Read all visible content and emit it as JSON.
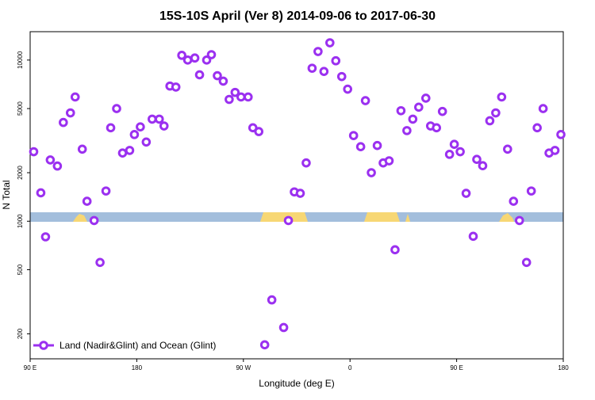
{
  "chart_data": {
    "type": "scatter",
    "title": "15S-10S April (Ver 8)   2014-09-06 to 2017-06-30",
    "x_label": "Longitude (deg E)",
    "y_label": "N Total",
    "log_y": true,
    "xlim": [
      90,
      540
    ],
    "xticks": [
      {
        "value": 90,
        "label": "90 E"
      },
      180,
      {
        "value": 270,
        "label": "90 W"
      },
      {
        "value": 360,
        "label": "0"
      },
      {
        "value": 450,
        "label": "90 E"
      },
      {
        "value": 540,
        "label": "180"
      }
    ],
    "ylim": [
      140,
      15000
    ],
    "yticks": [
      200,
      500,
      1000,
      2000,
      5000,
      10000
    ],
    "legend": "bottom-left",
    "series": [
      {
        "name": "Land (Nadir&Glint) and Ocean (Glint)",
        "color": "#9b30f0",
        "x": [
          93,
          99,
          103,
          107,
          113,
          118,
          124,
          128,
          134,
          138,
          144,
          149,
          154,
          158,
          163,
          168,
          174,
          178,
          183,
          188,
          193,
          199,
          203,
          208,
          213,
          218,
          223,
          229,
          233,
          239,
          243,
          248,
          253,
          258,
          263,
          268,
          274,
          278,
          283,
          288,
          294,
          304,
          308,
          313,
          318,
          323,
          328,
          333,
          338,
          343,
          348,
          353,
          358,
          363,
          369,
          373,
          378,
          383,
          388,
          393,
          398,
          403,
          408,
          413,
          418,
          424,
          428,
          433,
          438,
          444,
          448,
          453,
          458,
          464,
          467,
          472,
          478,
          483,
          488,
          493,
          498,
          503,
          509,
          513,
          518,
          523,
          528,
          533,
          538
        ],
        "values": [
          2700,
          1500,
          800,
          2400,
          2200,
          4100,
          4700,
          5900,
          2800,
          1330,
          1010,
          555,
          1540,
          3800,
          5000,
          2650,
          2750,
          3450,
          3850,
          3100,
          4300,
          4300,
          3900,
          6900,
          6800,
          10700,
          10000,
          10300,
          8100,
          10000,
          10800,
          8000,
          7400,
          5700,
          6300,
          5900,
          5900,
          3800,
          3600,
          171,
          325,
          219,
          1010,
          1520,
          1490,
          2300,
          8900,
          11300,
          8500,
          12800,
          9900,
          7900,
          6600,
          3400,
          2900,
          5600,
          2000,
          2950,
          2300,
          2370,
          665,
          4850,
          3650,
          4300,
          5100,
          5800,
          3900,
          3800,
          4800,
          2600,
          3000,
          2700,
          1490,
          806,
          2420,
          2210,
          4200,
          4700,
          5900,
          2800,
          1330,
          1010,
          555,
          1540,
          3800,
          5000,
          2650,
          2750,
          3450
        ]
      }
    ]
  }
}
